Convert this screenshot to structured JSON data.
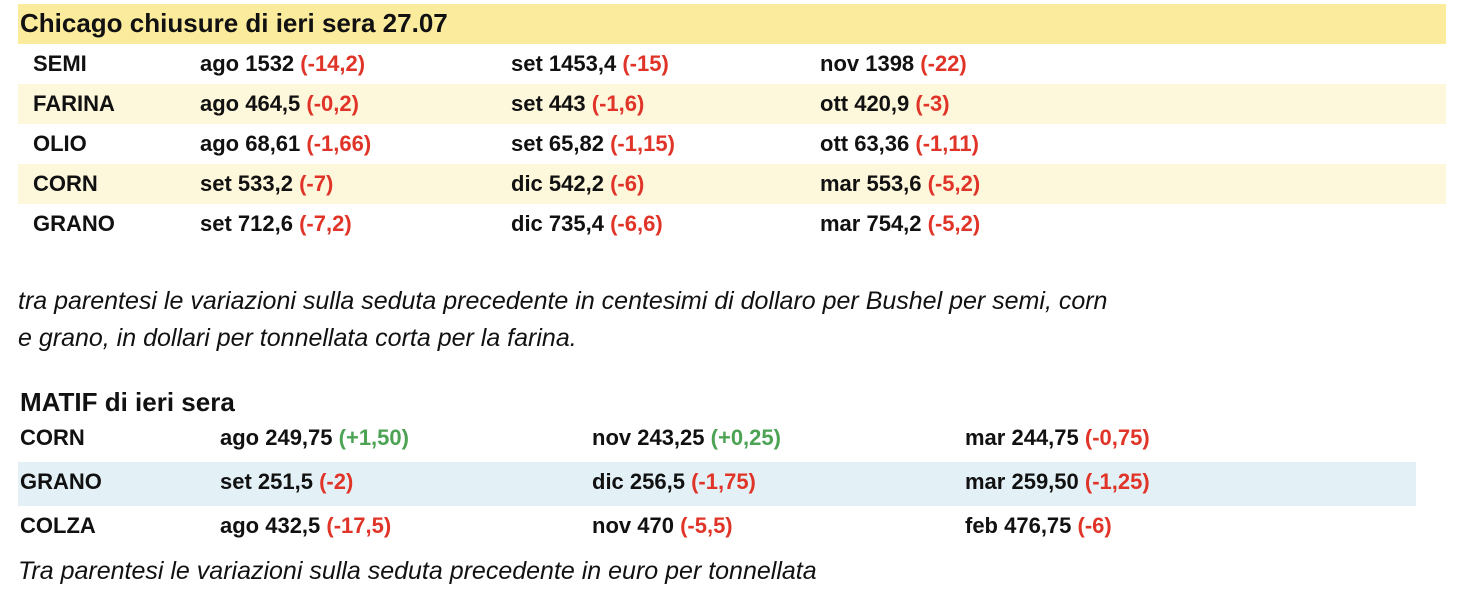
{
  "chicago": {
    "title": "Chicago chiusure di ieri sera 27.07",
    "title_background": "#fbeb9d",
    "row_colors": [
      "#ffffff",
      "#fdf7dc"
    ],
    "rows": [
      {
        "label": "SEMI",
        "cells": [
          {
            "text": "ago 1532",
            "change": "(-14,2)",
            "change_color": "#e03428"
          },
          {
            "text": "set 1453,4",
            "change": "(-15)",
            "change_color": "#e03428"
          },
          {
            "text": "nov 1398",
            "change": "(-22)",
            "change_color": "#e03428"
          }
        ]
      },
      {
        "label": "FARINA",
        "cells": [
          {
            "text": "ago 464,5",
            "change": "(-0,2)",
            "change_color": "#e03428"
          },
          {
            "text": "set 443",
            "change": "(-1,6)",
            "change_color": "#e03428"
          },
          {
            "text": "ott 420,9",
            "change": "(-3)",
            "change_color": "#e03428"
          }
        ]
      },
      {
        "label": "OLIO",
        "cells": [
          {
            "text": "ago 68,61",
            "change": "(-1,66)",
            "change_color": "#e03428"
          },
          {
            "text": "set 65,82",
            "change": "(-1,15)",
            "change_color": "#e03428"
          },
          {
            "text": "ott 63,36",
            "change": "(-1,11)",
            "change_color": "#e03428"
          }
        ]
      },
      {
        "label": "CORN",
        "cells": [
          {
            "text": "set 533,2",
            "change": "(-7)",
            "change_color": "#e03428"
          },
          {
            "text": "dic 542,2",
            "change": "(-6)",
            "change_color": "#e03428"
          },
          {
            "text": "mar 553,6",
            "change": "(-5,2)",
            "change_color": "#e03428"
          }
        ]
      },
      {
        "label": "GRANO",
        "cells": [
          {
            "text": "set 712,6",
            "change": "(-7,2)",
            "change_color": "#e03428"
          },
          {
            "text": "dic 735,4",
            "change": "(-6,6)",
            "change_color": "#e03428"
          },
          {
            "text": "mar 754,2",
            "change": "(-5,2)",
            "change_color": "#e03428"
          }
        ]
      }
    ],
    "note_lines": [
      "tra parentesi le variazioni sulla seduta precedente in centesimi di dollaro per Bushel per semi, corn",
      "e grano, in dollari per tonnellata corta per la farina."
    ]
  },
  "matif": {
    "title": "MATIF di ieri sera",
    "row_colors": [
      "#ffffff",
      "#e3f1f7"
    ],
    "rows": [
      {
        "label": "CORN",
        "cells": [
          {
            "text": "ago 249,75",
            "change": "(+1,50)",
            "change_color": "#4ca354"
          },
          {
            "text": "nov 243,25",
            "change": "(+0,25)",
            "change_color": "#4ca354"
          },
          {
            "text": "mar 244,75",
            "change": "(-0,75)",
            "change_color": "#e03428"
          }
        ]
      },
      {
        "label": "GRANO",
        "cells": [
          {
            "text": "set 251,5",
            "change": "(-2)",
            "change_color": "#e03428"
          },
          {
            "text": "dic 256,5",
            "change": "(-1,75)",
            "change_color": "#e03428"
          },
          {
            "text": "mar 259,50",
            "change": "(-1,25)",
            "change_color": "#e03428"
          }
        ]
      },
      {
        "label": "COLZA",
        "cells": [
          {
            "text": "ago 432,5",
            "change": "(-17,5)",
            "change_color": "#e03428"
          },
          {
            "text": "nov 470",
            "change": "(-5,5)",
            "change_color": "#e03428"
          },
          {
            "text": "feb 476,75",
            "change": "(-6)",
            "change_color": "#e03428"
          }
        ]
      }
    ],
    "note": "Tra parentesi le variazioni sulla seduta precedente in euro per tonnellata"
  }
}
